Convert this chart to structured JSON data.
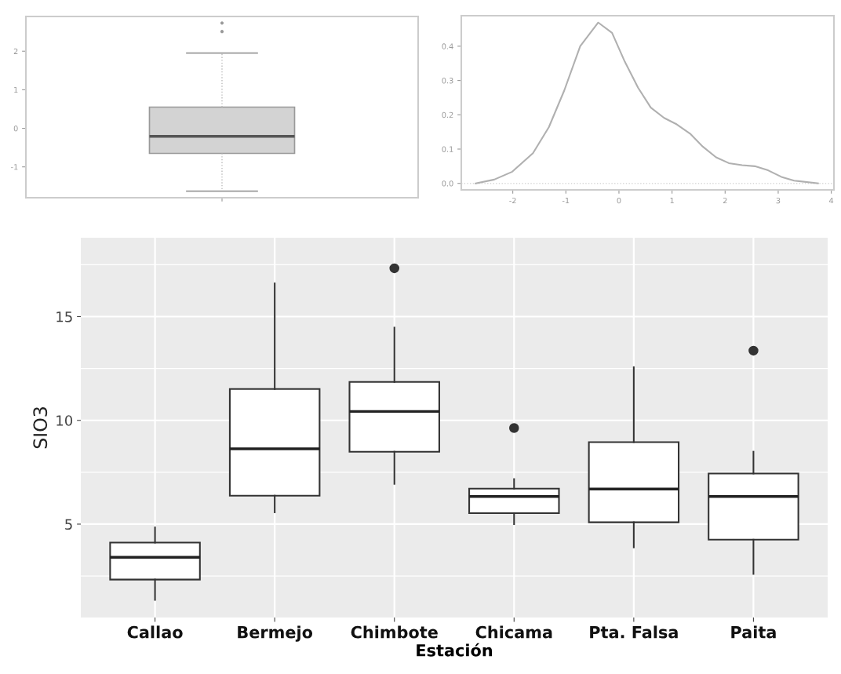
{
  "chart_data": [
    {
      "type": "box",
      "categories": [
        null
      ],
      "color": "#d3d3d3",
      "tick_labels": "y",
      "grid": false,
      "ylim": [
        -1.8,
        2.9
      ],
      "yticks": [
        -1,
        0,
        1,
        2
      ],
      "boxes": [
        {
          "low": -1.63,
          "q1": -0.65,
          "median": -0.21,
          "q3": 0.55,
          "high": 1.95,
          "outliers": [
            2.51,
            2.73
          ]
        }
      ]
    },
    {
      "type": "line",
      "color": "#b0b0b0",
      "grid": false,
      "xlim": [
        -2.97,
        4.05
      ],
      "ylim": [
        -0.019,
        0.489
      ],
      "xticks": [
        -2,
        -1,
        0,
        1,
        2,
        3,
        4
      ],
      "yticks": [
        {
          "value": 0,
          "label": "0.0"
        },
        {
          "value": 0.1,
          "label": "0.1"
        },
        {
          "value": 0.2,
          "label": "0.2"
        },
        {
          "value": 0.3,
          "label": "0.3"
        },
        {
          "value": 0.4,
          "label": "0.4"
        }
      ],
      "ref_lines": [
        {
          "axis": "y",
          "value": 0,
          "label": null,
          "color": "#d8d8d8",
          "line_style": "dotted"
        }
      ],
      "series": [
        {
          "x": [
            -2.7,
            -2.35,
            -2.01,
            -1.62,
            -1.32,
            -1.03,
            -0.73,
            -0.39,
            -0.13,
            0.11,
            0.36,
            0.6,
            0.85,
            1.09,
            1.34,
            1.58,
            1.83,
            2.07,
            2.32,
            2.56,
            2.81,
            3.06,
            3.3,
            3.75
          ],
          "values": [
            0.0,
            0.011,
            0.034,
            0.088,
            0.164,
            0.271,
            0.4,
            0.469,
            0.439,
            0.355,
            0.279,
            0.221,
            0.191,
            0.172,
            0.145,
            0.107,
            0.076,
            0.059,
            0.053,
            0.05,
            0.038,
            0.019,
            0.008,
            0.0
          ]
        }
      ]
    },
    {
      "type": "box",
      "xlabel": "Estación",
      "ylabel": "SIO3",
      "color": "#ffffff",
      "grid": true,
      "ylim": [
        0.5,
        18.8
      ],
      "yticks": [
        5,
        10,
        15
      ],
      "categories": [
        "Callao",
        "Bermejo",
        "Chimbote",
        "Chicama",
        "Pta. Falsa",
        "Paita"
      ],
      "boxes": [
        {
          "low": 1.35,
          "q1": 2.33,
          "median": 3.4,
          "q3": 4.11,
          "high": 4.84
        },
        {
          "low": 5.57,
          "q1": 6.37,
          "median": 8.63,
          "q3": 11.51,
          "high": 16.6
        },
        {
          "low": 6.94,
          "q1": 8.49,
          "median": 10.43,
          "q3": 11.85,
          "high": 14.47,
          "outliers": [
            17.33
          ]
        },
        {
          "low": 5.0,
          "q1": 5.53,
          "median": 6.33,
          "q3": 6.71,
          "high": 7.17,
          "outliers": [
            9.63
          ]
        },
        {
          "low": 3.88,
          "q1": 5.09,
          "median": 6.69,
          "q3": 8.95,
          "high": 12.56
        },
        {
          "low": 2.6,
          "q1": 4.25,
          "median": 6.33,
          "q3": 7.44,
          "high": 8.49,
          "outliers": [
            13.36
          ]
        }
      ]
    }
  ]
}
